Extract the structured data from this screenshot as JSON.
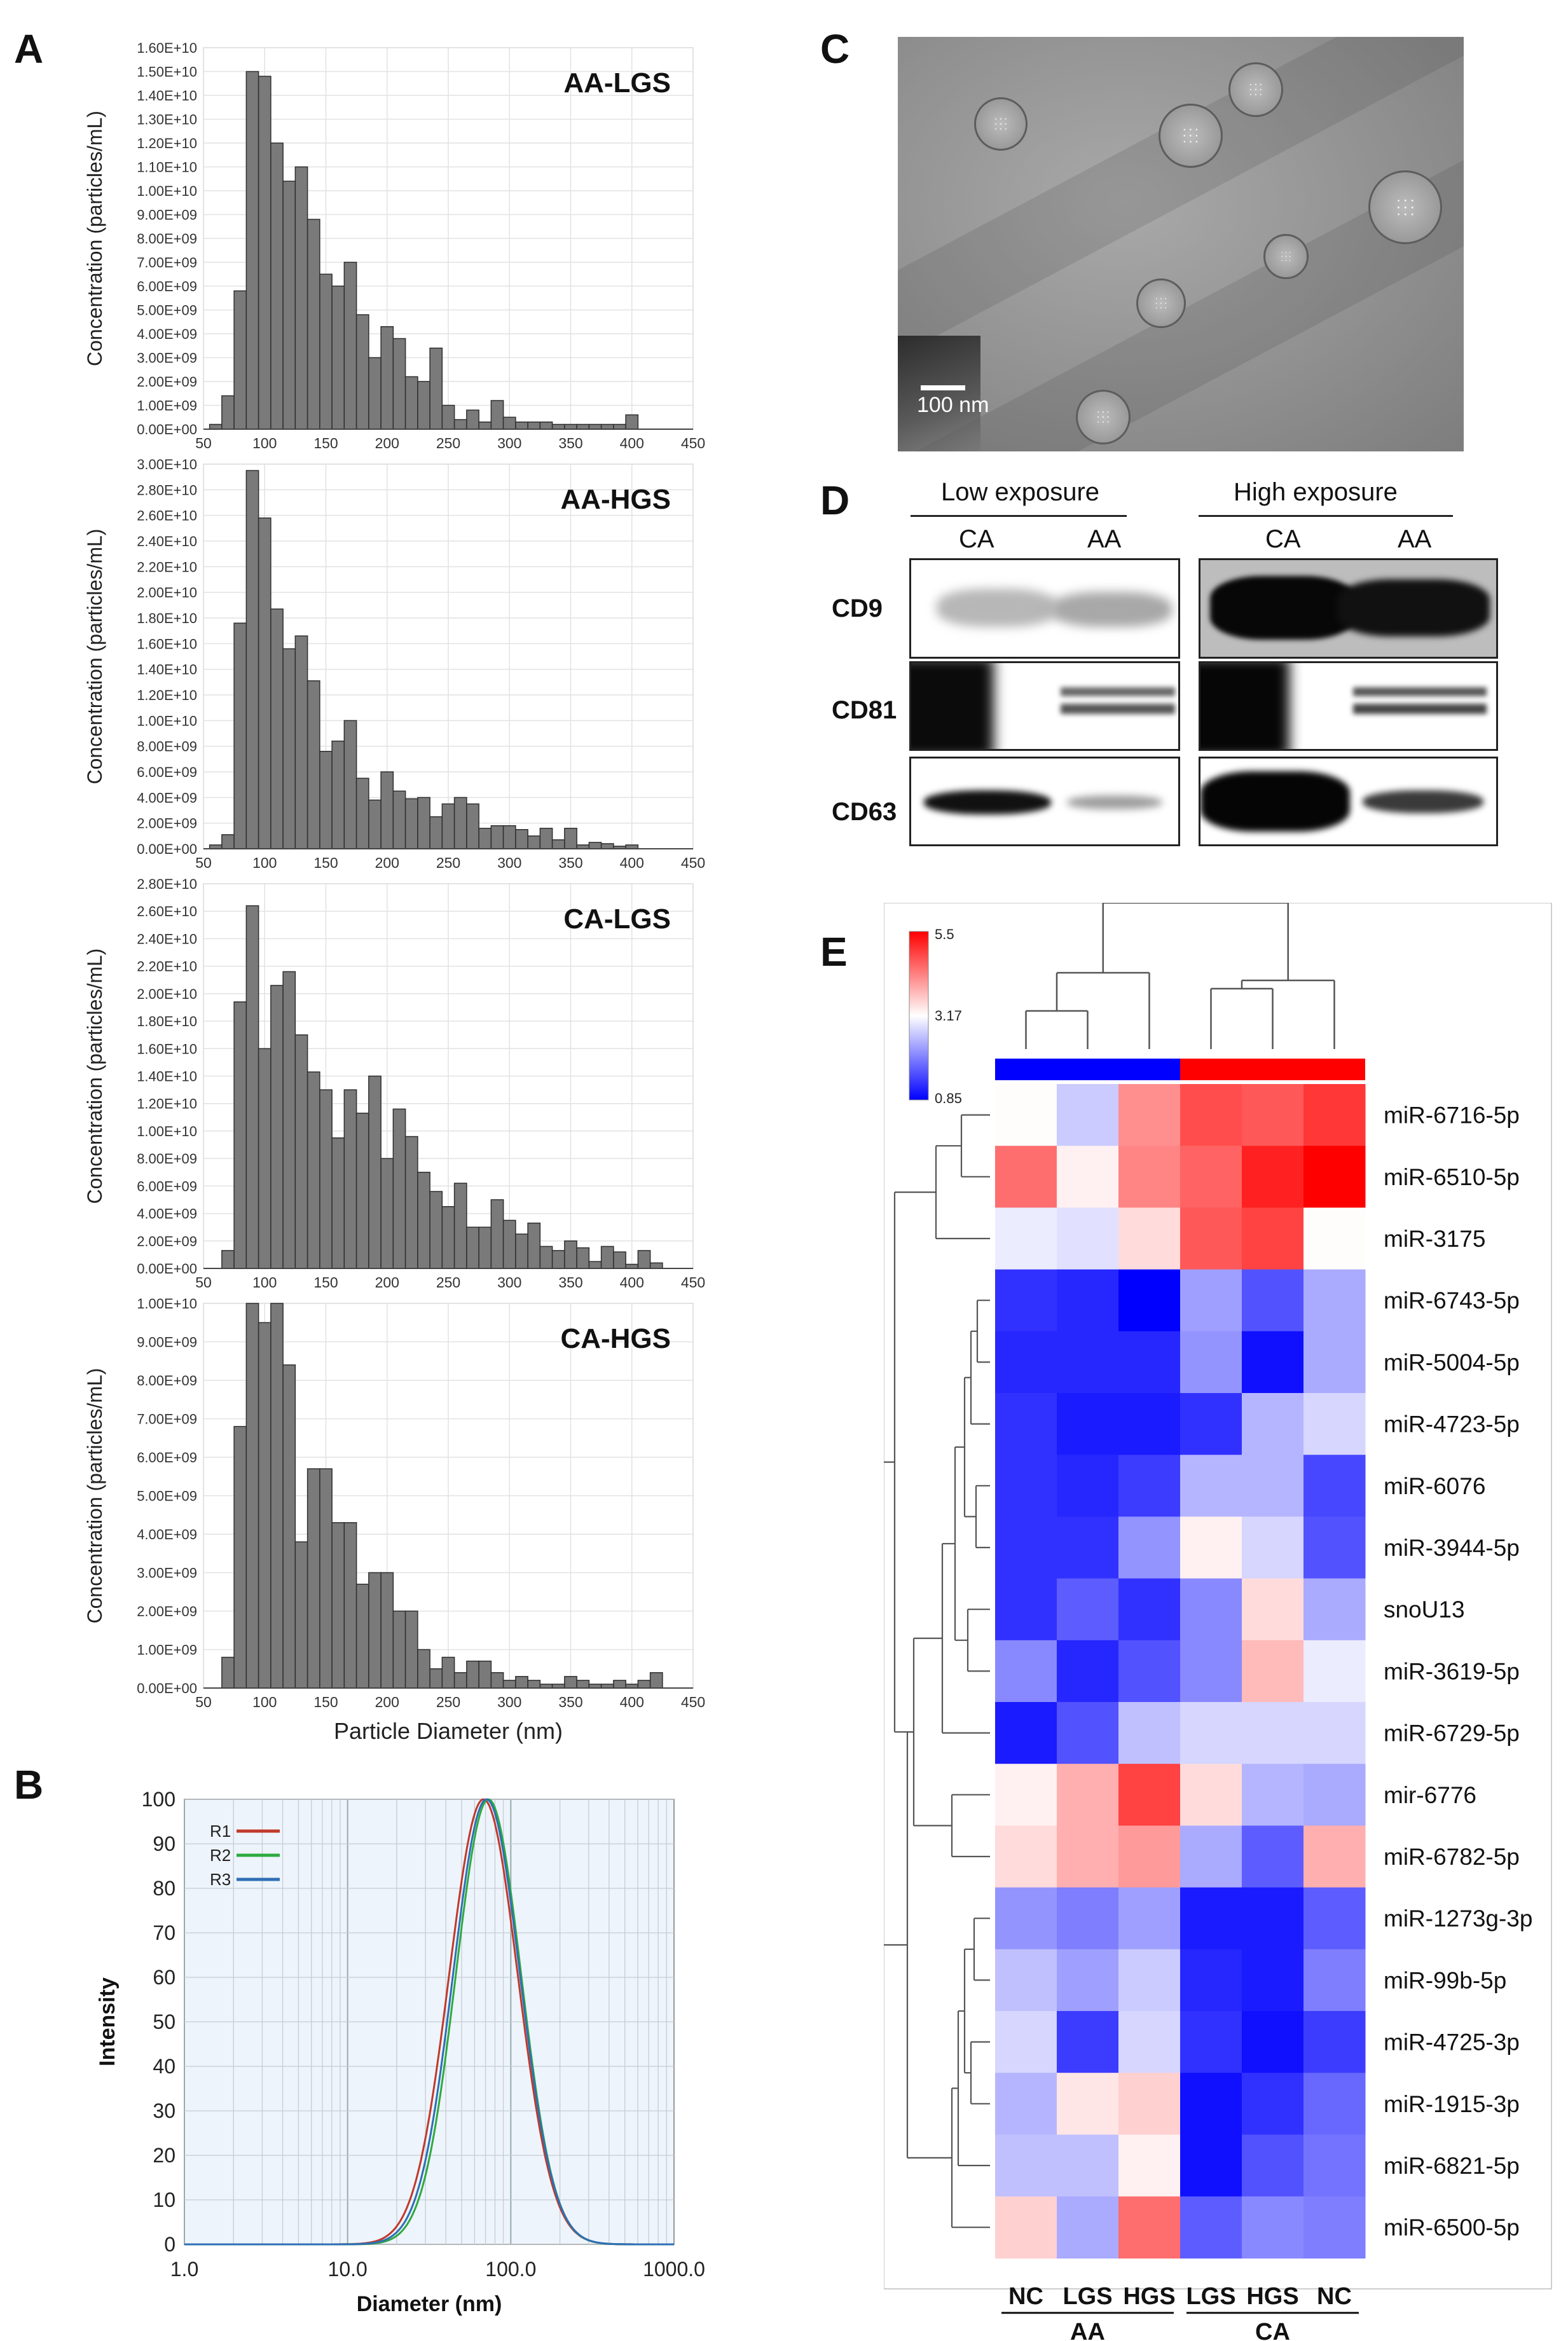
{
  "panels": {
    "a": "A",
    "b": "B",
    "c": "C",
    "d": "D",
    "e": "E"
  },
  "nta": {
    "y_axis_label": "Concentration (particles/mL)",
    "x_axis_label": "Particle Diameter (nm)",
    "x_ticks": [
      "50",
      "100",
      "150",
      "200",
      "250",
      "300",
      "350",
      "400",
      "450"
    ]
  },
  "tem": {
    "scale_label": "100 nm"
  },
  "western": {
    "group_low": "Low exposure",
    "group_high": "High exposure",
    "lanes": [
      "CA",
      "AA",
      "CA",
      "AA"
    ],
    "rows": [
      "CD9",
      "CD81",
      "CD63"
    ]
  },
  "colors": {
    "bar_fill": "#7a7a7a",
    "dls_r1": "#c0392b",
    "dls_r2": "#2eaa3f",
    "dls_r3": "#2e6fb5",
    "heat_low": "#0000ff",
    "heat_mid": "#ffffff",
    "heat_high": "#ff0000"
  },
  "chart_data": [
    {
      "type": "bar",
      "title": "AA-LGS",
      "ylabel": "Concentration (particles/mL)",
      "xlabel": "",
      "xlim": [
        50,
        450
      ],
      "ylim": [
        0,
        16000000000.0
      ],
      "y_ticks": [
        "0.00E+00",
        "1.00E+09",
        "2.00E+09",
        "3.00E+09",
        "4.00E+09",
        "5.00E+09",
        "6.00E+09",
        "7.00E+09",
        "8.00E+09",
        "9.00E+09",
        "1.00E+10",
        "1.10E+10",
        "1.20E+10",
        "1.30E+10",
        "1.40E+10",
        "1.50E+10",
        "1.60E+10"
      ],
      "bin_width": 10,
      "bin_start": 60,
      "values": [
        200000000.0,
        1400000000.0,
        5800000000.0,
        15000000000.0,
        14800000000.0,
        12000000000.0,
        10400000000.0,
        11000000000.0,
        8800000000.0,
        6500000000.0,
        6000000000.0,
        7000000000.0,
        4800000000.0,
        3000000000.0,
        4300000000.0,
        3800000000.0,
        2200000000.0,
        2000000000.0,
        3400000000.0,
        1000000000.0,
        400000000.0,
        800000000.0,
        300000000.0,
        1200000000.0,
        500000000.0,
        300000000.0,
        300000000.0,
        300000000.0,
        200000000.0,
        200000000.0,
        200000000.0,
        200000000.0,
        200000000.0,
        200000000.0,
        600000000.0
      ]
    },
    {
      "type": "bar",
      "title": "AA-HGS",
      "ylabel": "Concentration (particles/mL)",
      "xlabel": "",
      "xlim": [
        50,
        450
      ],
      "ylim": [
        0,
        30000000000.0
      ],
      "y_ticks": [
        "0.00E+00",
        "2.00E+09",
        "4.00E+09",
        "6.00E+09",
        "8.00E+09",
        "1.00E+10",
        "1.20E+10",
        "1.40E+10",
        "1.60E+10",
        "1.80E+10",
        "2.00E+10",
        "2.20E+10",
        "2.40E+10",
        "2.60E+10",
        "2.80E+10",
        "3.00E+10"
      ],
      "bin_width": 10,
      "bin_start": 60,
      "values": [
        300000000.0,
        1100000000.0,
        17600000000.0,
        29500000000.0,
        25800000000.0,
        18700000000.0,
        15600000000.0,
        16600000000.0,
        13100000000.0,
        7600000000.0,
        8400000000.0,
        10000000000.0,
        5500000000.0,
        3800000000.0,
        6000000000.0,
        4500000000.0,
        3900000000.0,
        4000000000.0,
        2500000000.0,
        3500000000.0,
        4000000000.0,
        3500000000.0,
        1600000000.0,
        1800000000.0,
        1800000000.0,
        1500000000.0,
        1000000000.0,
        1600000000.0,
        700000000.0,
        1600000000.0,
        300000000.0,
        500000000.0,
        400000000.0,
        200000000.0,
        300000000.0
      ]
    },
    {
      "type": "bar",
      "title": "CA-LGS",
      "ylabel": "Concentration (particles/mL)",
      "xlabel": "",
      "xlim": [
        50,
        450
      ],
      "ylim": [
        0,
        28000000000.0
      ],
      "y_ticks": [
        "0.00E+00",
        "2.00E+09",
        "4.00E+09",
        "6.00E+09",
        "8.00E+09",
        "1.00E+10",
        "1.20E+10",
        "1.40E+10",
        "1.60E+10",
        "1.80E+10",
        "2.00E+10",
        "2.20E+10",
        "2.40E+10",
        "2.60E+10",
        "2.80E+10"
      ],
      "bin_width": 10,
      "bin_start": 70,
      "values": [
        1300000000.0,
        19400000000.0,
        26400000000.0,
        16000000000.0,
        20600000000.0,
        21600000000.0,
        17000000000.0,
        14300000000.0,
        13000000000.0,
        9500000000.0,
        13000000000.0,
        11300000000.0,
        14000000000.0,
        8000000000.0,
        11600000000.0,
        9600000000.0,
        7000000000.0,
        5600000000.0,
        4500000000.0,
        6200000000.0,
        3000000000.0,
        3000000000.0,
        5000000000.0,
        3500000000.0,
        2500000000.0,
        3300000000.0,
        1600000000.0,
        1300000000.0,
        2000000000.0,
        1500000000.0,
        500000000.0,
        1600000000.0,
        1200000000.0,
        300000000.0,
        1300000000.0,
        400000000.0
      ]
    },
    {
      "type": "bar",
      "title": "CA-HGS",
      "ylabel": "Concentration (particles/mL)",
      "xlabel": "Particle Diameter (nm)",
      "xlim": [
        50,
        450
      ],
      "ylim": [
        0,
        10000000000.0
      ],
      "y_ticks": [
        "0.00E+00",
        "1.00E+09",
        "2.00E+09",
        "3.00E+09",
        "4.00E+09",
        "5.00E+09",
        "6.00E+09",
        "7.00E+09",
        "8.00E+09",
        "9.00E+09",
        "1.00E+10"
      ],
      "bin_width": 10,
      "bin_start": 70,
      "values": [
        800000000.0,
        6800000000.0,
        10000000000.0,
        9500000000.0,
        10000000000.0,
        8400000000.0,
        3800000000.0,
        5700000000.0,
        5700000000.0,
        4300000000.0,
        4300000000.0,
        2700000000.0,
        3000000000.0,
        3000000000.0,
        2000000000.0,
        2000000000.0,
        1000000000.0,
        500000000.0,
        800000000.0,
        400000000.0,
        700000000.0,
        700000000.0,
        400000000.0,
        200000000.0,
        300000000.0,
        200000000.0,
        100000000.0,
        100000000.0,
        300000000.0,
        200000000.0,
        100000000.0,
        100000000.0,
        200000000.0,
        100000000.0,
        200000000.0,
        400000000.0
      ]
    },
    {
      "type": "line",
      "xlabel": "Diameter (nm)",
      "ylabel": "Intensity",
      "x_scale": "log",
      "xlim": [
        1,
        1000
      ],
      "ylim": [
        0,
        100
      ],
      "x_ticks": [
        "1.0",
        "10.0",
        "100.0",
        "1000.0"
      ],
      "y_ticks": [
        "0",
        "10",
        "20",
        "30",
        "40",
        "50",
        "60",
        "70",
        "80",
        "90",
        "100"
      ],
      "legend_position": "top-left",
      "series": [
        {
          "name": "R1",
          "peak": 68,
          "log_sigma": 0.21
        },
        {
          "name": "R2",
          "peak": 73,
          "log_sigma": 0.2
        },
        {
          "name": "R3",
          "peak": 71,
          "log_sigma": 0.205
        }
      ]
    },
    {
      "type": "heatmap",
      "scale_labels": [
        "5.5",
        "3.17",
        "0.85"
      ],
      "vmin": 0.85,
      "vmax": 5.5,
      "columns": [
        "NC",
        "LGS",
        "HGS",
        "LGS",
        "HGS",
        "NC"
      ],
      "column_groups": [
        {
          "name": "AA",
          "span": 3
        },
        {
          "name": "CA",
          "span": 3
        }
      ],
      "rows": [
        "miR-6716-5p",
        "miR-6510-5p",
        "miR-3175",
        "miR-6743-5p",
        "miR-5004-5p",
        "miR-4723-5p",
        "miR-6076",
        "miR-3944-5p",
        "snoU13",
        "miR-3619-5p",
        "miR-6729-5p",
        "mir-6776",
        "miR-6782-5p",
        "miR-1273g-3p",
        "miR-99b-5p",
        "miR-4725-3p",
        "miR-1915-3p",
        "miR-6821-5p",
        "miR-6500-5p"
      ],
      "values": [
        [
          3.2,
          2.7,
          4.2,
          4.8,
          4.7,
          5.0
        ],
        [
          4.5,
          3.3,
          4.3,
          4.6,
          5.2,
          5.5
        ],
        [
          3.0,
          2.9,
          3.5,
          4.7,
          4.9,
          3.2
        ],
        [
          1.3,
          1.2,
          0.85,
          2.3,
          1.6,
          2.4
        ],
        [
          1.2,
          1.2,
          1.2,
          2.2,
          1.0,
          2.4
        ],
        [
          1.3,
          1.1,
          1.1,
          1.3,
          2.5,
          2.8
        ],
        [
          1.3,
          1.2,
          1.4,
          2.5,
          2.5,
          1.5
        ],
        [
          1.3,
          1.3,
          2.2,
          3.3,
          2.8,
          1.6
        ],
        [
          1.3,
          1.7,
          1.3,
          2.1,
          3.5,
          2.4
        ],
        [
          2.1,
          1.2,
          1.6,
          2.1,
          3.8,
          3.0
        ],
        [
          1.1,
          1.6,
          2.6,
          2.8,
          2.8,
          2.8
        ],
        [
          3.3,
          3.9,
          4.9,
          3.5,
          2.5,
          2.4
        ],
        [
          3.5,
          3.9,
          4.1,
          2.4,
          1.7,
          3.9
        ],
        [
          2.2,
          2.0,
          2.3,
          1.1,
          1.1,
          1.7
        ],
        [
          2.6,
          2.3,
          2.7,
          1.2,
          1.1,
          2.0
        ],
        [
          2.8,
          1.4,
          2.8,
          1.3,
          1.0,
          1.4
        ],
        [
          2.5,
          3.4,
          3.6,
          1.0,
          1.3,
          1.8
        ],
        [
          2.6,
          2.6,
          3.3,
          1.0,
          1.6,
          1.9
        ],
        [
          3.6,
          2.4,
          4.5,
          1.7,
          2.1,
          2.0
        ]
      ]
    }
  ]
}
